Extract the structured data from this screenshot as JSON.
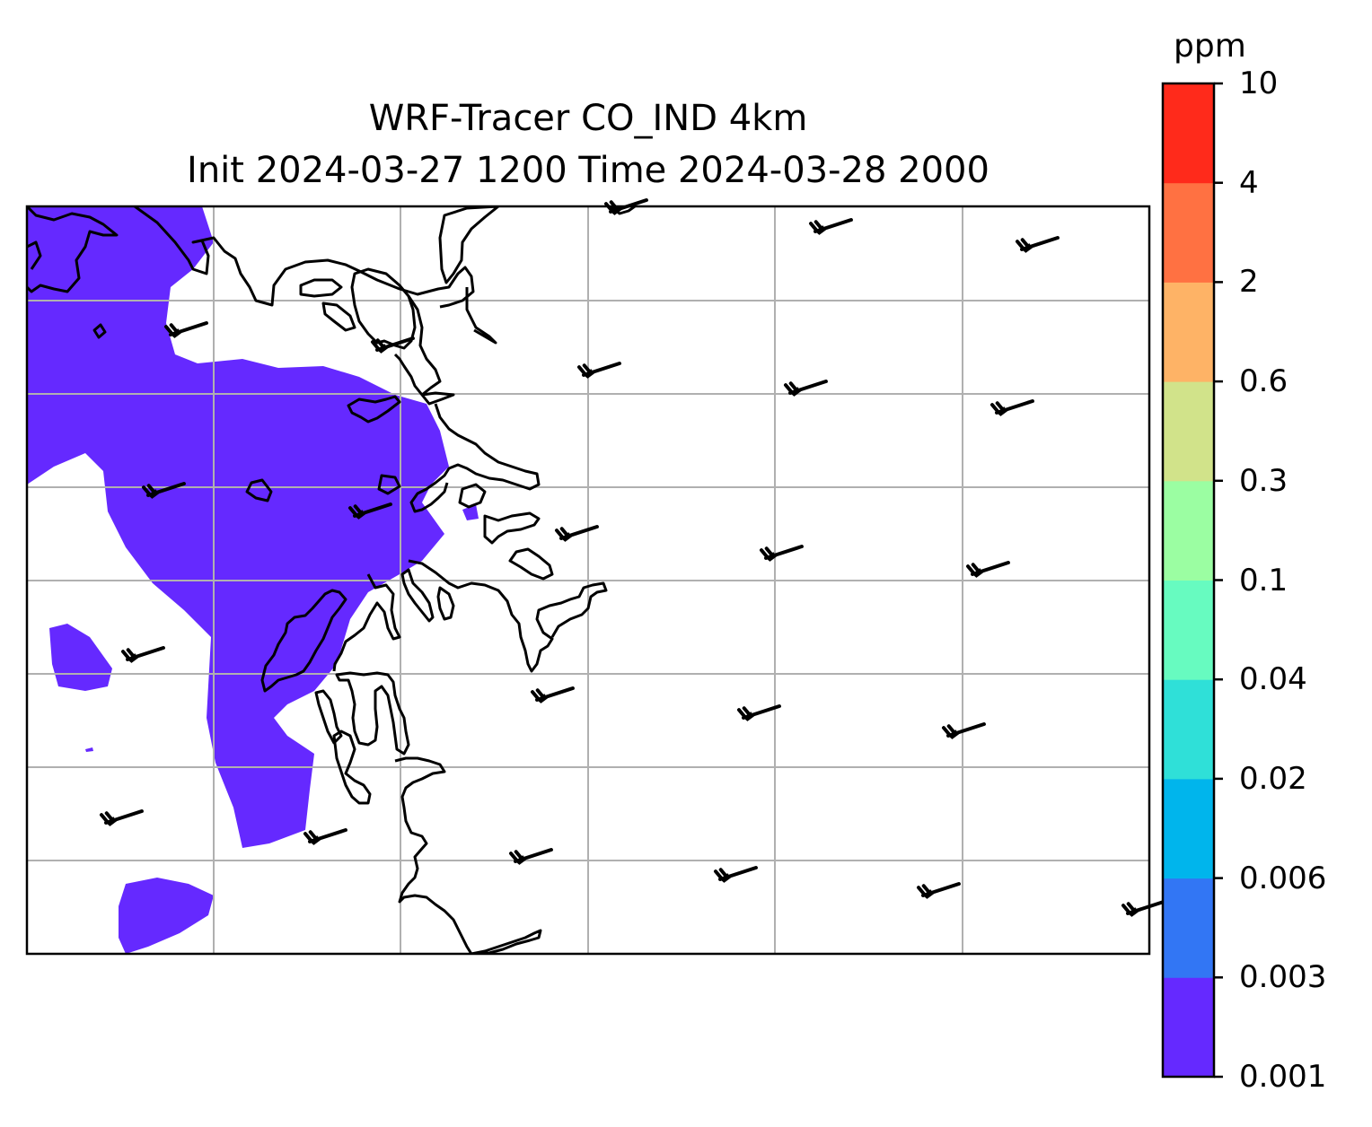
{
  "title": {
    "line1": "WRF-Tracer CO_IND 4km",
    "line2": "Init 2024-03-27 1200 Time 2024-03-28 2000"
  },
  "colorbar": {
    "unit": "ppm",
    "levels": [
      "0.001",
      "0.003",
      "0.006",
      "0.02",
      "0.04",
      "0.1",
      "0.3",
      "0.6",
      "2",
      "4",
      "10"
    ],
    "colors": [
      "#6529ff",
      "#3276f4",
      "#00b5ec",
      "#2fe0d8",
      "#67fbc0",
      "#9bfea2",
      "#d1e38a",
      "#feb366",
      "#ff7142",
      "#ff2a1b"
    ]
  },
  "map": {
    "plume_fill_color": "#6529ff",
    "plume_level": "0.001",
    "coastline_color": "#000000",
    "gridline_color": "#b0b0b0",
    "wind_barbs": "wind-barb-icon"
  }
}
